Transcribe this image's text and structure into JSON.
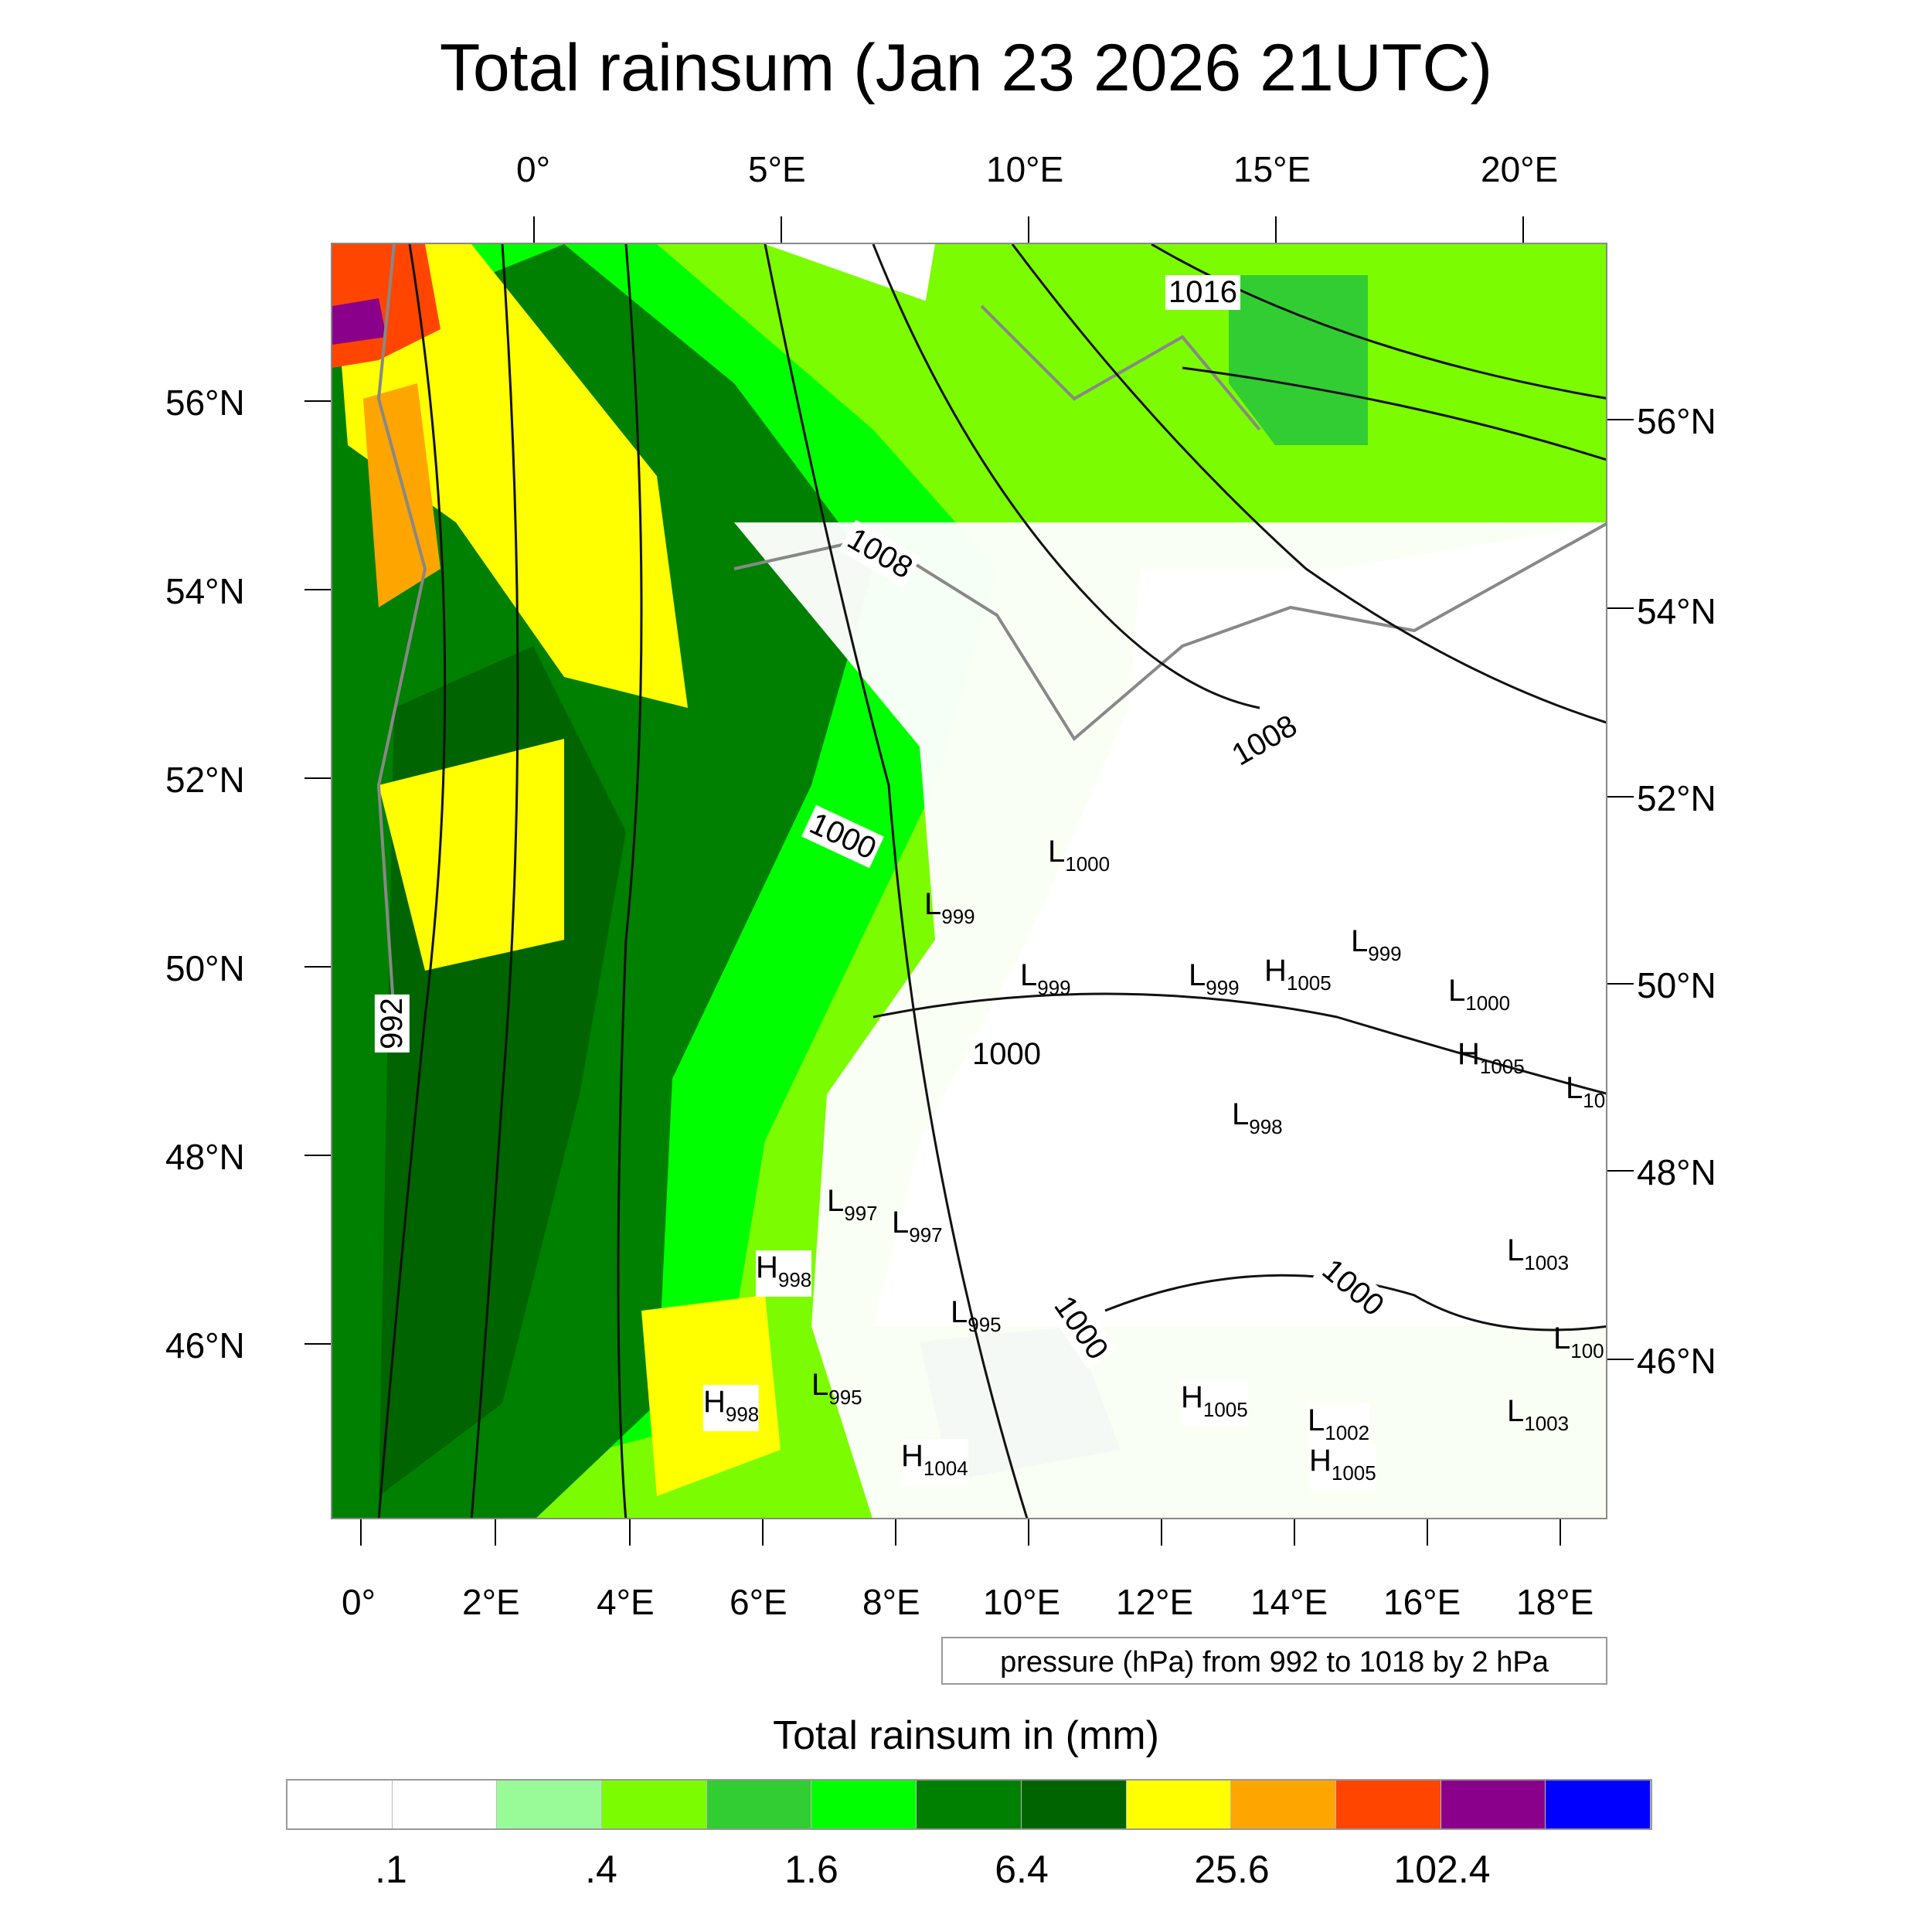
{
  "title": "Total rainsum (Jan 23 2026 21UTC)",
  "top_lon_labels": [
    "0°",
    "5°E",
    "10°E",
    "15°E",
    "20°E"
  ],
  "bottom_lon_labels": [
    "0°",
    "2°E",
    "4°E",
    "6°E",
    "8°E",
    "10°E",
    "12°E",
    "14°E",
    "16°E",
    "18°E"
  ],
  "left_lat_labels": [
    "56°N",
    "54°N",
    "52°N",
    "50°N",
    "48°N",
    "46°N"
  ],
  "right_lat_labels": [
    "56°N",
    "54°N",
    "52°N",
    "50°N",
    "48°N",
    "46°N"
  ],
  "isobar_labels": [
    "1016",
    "1008",
    "1008",
    "1000",
    "1000",
    "992",
    "1000",
    "1000"
  ],
  "pressure_centers": [
    {
      "type": "L",
      "value": "1000"
    },
    {
      "type": "L",
      "value": "999"
    },
    {
      "type": "L",
      "value": "999"
    },
    {
      "type": "L",
      "value": "999"
    },
    {
      "type": "L",
      "value": "999"
    },
    {
      "type": "H",
      "value": "1005"
    },
    {
      "type": "L",
      "value": "1000"
    },
    {
      "type": "H",
      "value": "1005"
    },
    {
      "type": "L",
      "value": "10"
    },
    {
      "type": "L",
      "value": "998"
    },
    {
      "type": "L",
      "value": "997"
    },
    {
      "type": "L",
      "value": "997"
    },
    {
      "type": "H",
      "value": "998"
    },
    {
      "type": "L",
      "value": "995"
    },
    {
      "type": "L",
      "value": "995"
    },
    {
      "type": "H",
      "value": "998"
    },
    {
      "type": "H",
      "value": "1004"
    },
    {
      "type": "H",
      "value": "1005"
    },
    {
      "type": "L",
      "value": "1002"
    },
    {
      "type": "H",
      "value": "1005"
    },
    {
      "type": "L",
      "value": "1003"
    },
    {
      "type": "L",
      "value": "100"
    },
    {
      "type": "L",
      "value": "1003"
    }
  ],
  "contour_note": "pressure (hPa) from 992 to 1018 by 2 hPa",
  "colorbar": {
    "title": "Total rainsum in (mm)",
    "colors": [
      "#ffffff",
      "#ffffff",
      "#98fb98",
      "#7cfc00",
      "#32cd32",
      "#00ff00",
      "#008000",
      "#006400",
      "#ffff00",
      "#ffa500",
      "#ff4500",
      "#8b008b",
      "#0000ff"
    ],
    "labels": [
      ".1",
      ".4",
      "1.6",
      "6.4",
      "25.6",
      "102.4"
    ]
  }
}
